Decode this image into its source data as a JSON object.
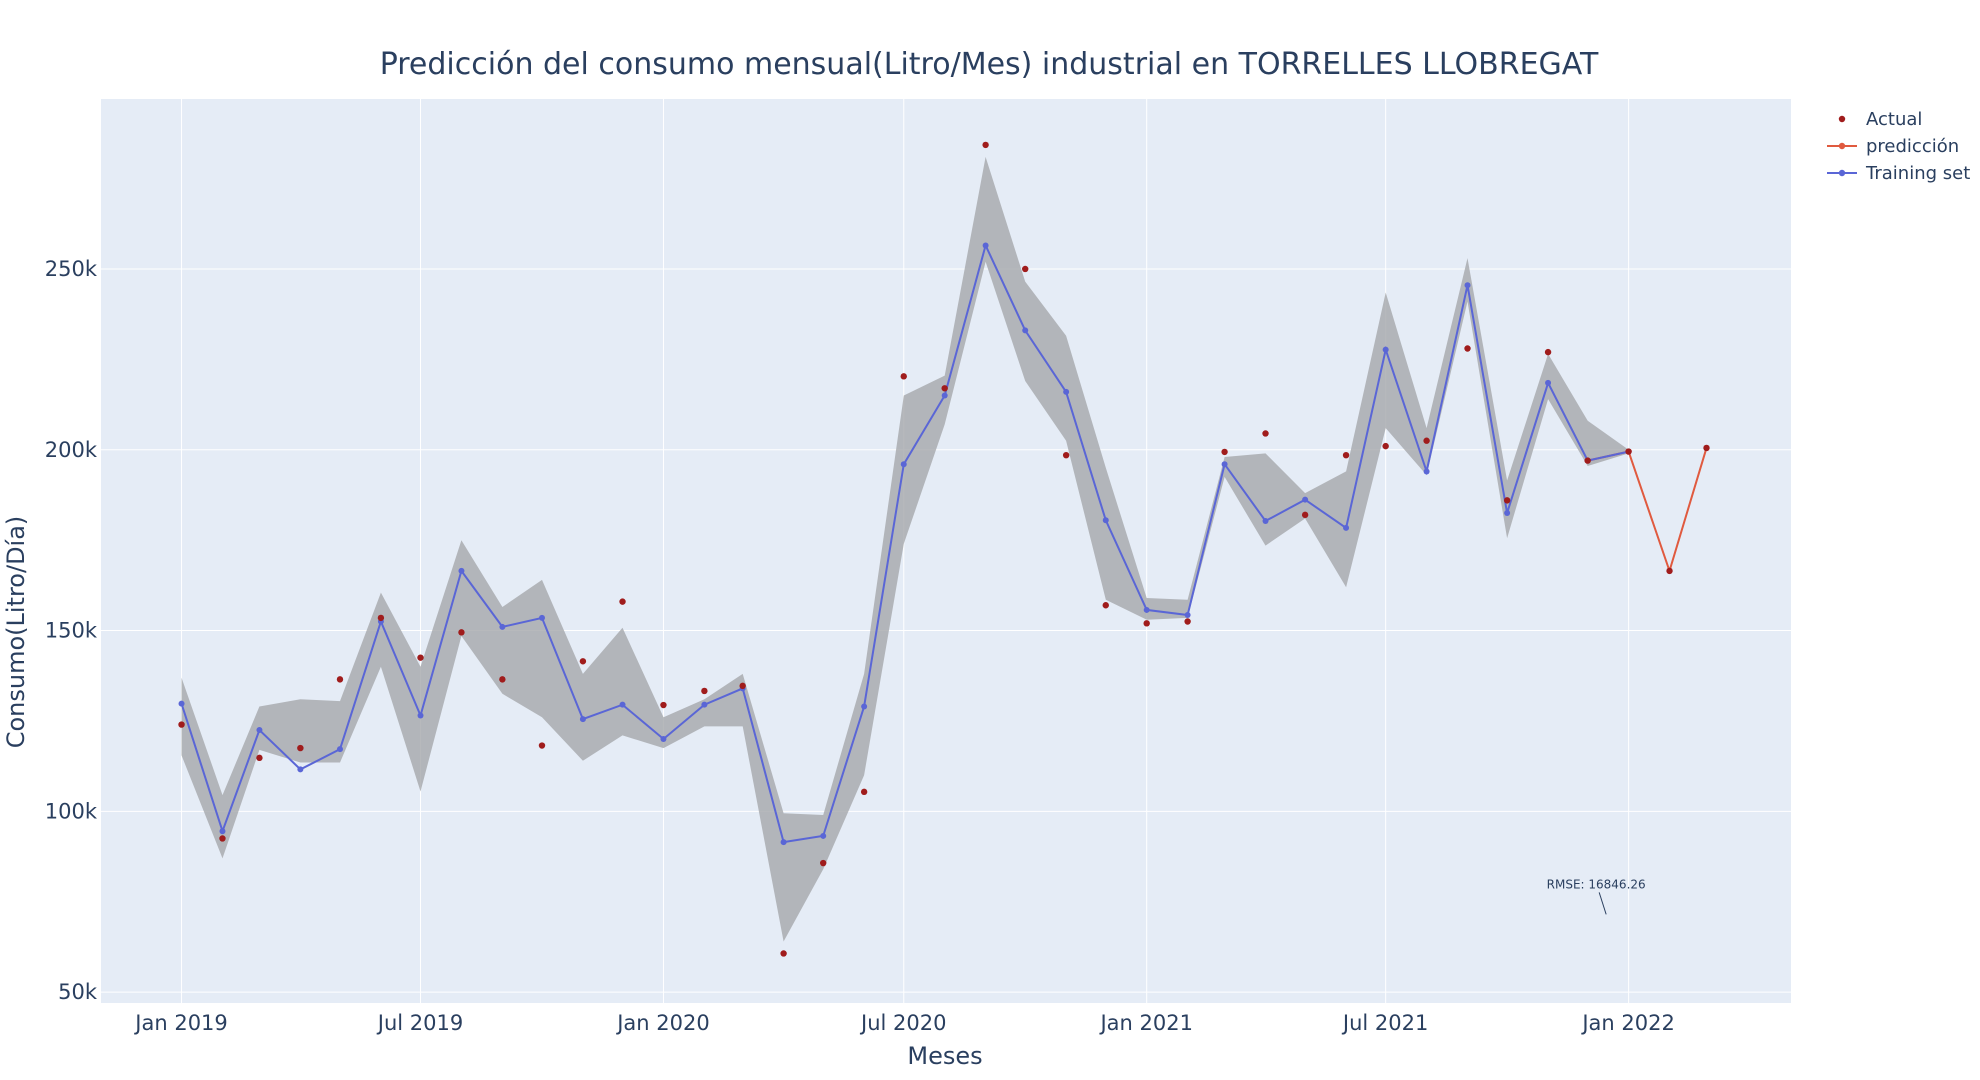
{
  "chart_data": {
    "type": "line",
    "title": "Predicción del consumo mensual(Litro/Mes) industrial en TORRELLES LLOBREGAT",
    "xlabel": "Meses",
    "ylabel": "Consumo(Litro/Día)",
    "x_ticks": [
      {
        "date": "2019-01-01",
        "label": "Jan 2019"
      },
      {
        "date": "2019-07-01",
        "label": "Jul 2019"
      },
      {
        "date": "2020-01-01",
        "label": "Jan 2020"
      },
      {
        "date": "2020-07-01",
        "label": "Jul 2020"
      },
      {
        "date": "2021-01-01",
        "label": "Jan 2021"
      },
      {
        "date": "2021-07-01",
        "label": "Jul 2021"
      },
      {
        "date": "2022-01-01",
        "label": "Jan 2022"
      }
    ],
    "y_ticks": [
      {
        "value": 50000,
        "label": "50k"
      },
      {
        "value": 100000,
        "label": "100k"
      },
      {
        "value": 150000,
        "label": "150k"
      },
      {
        "value": 200000,
        "label": "200k"
      },
      {
        "value": 250000,
        "label": "250k"
      }
    ],
    "xlim": [
      "2018-11-01",
      "2022-05-04"
    ],
    "ylim": [
      47000,
      297000
    ],
    "grid": true,
    "legend_position": "top-right",
    "colors": {
      "plot_bg": "#e5ecf6",
      "grid": "#ffffff",
      "actual": "#a01c1c",
      "prediction": "#e05a3f",
      "training": "#5a66d6",
      "band": "#a5a8ab"
    },
    "series": [
      {
        "name": "Actual",
        "mode": "markers",
        "x": [
          "2019-01-01",
          "2019-02-01",
          "2019-03-01",
          "2019-04-01",
          "2019-05-01",
          "2019-06-01",
          "2019-07-01",
          "2019-08-01",
          "2019-09-01",
          "2019-10-01",
          "2019-11-01",
          "2019-12-01",
          "2020-01-01",
          "2020-02-01",
          "2020-03-01",
          "2020-04-01",
          "2020-05-01",
          "2020-06-01",
          "2020-07-01",
          "2020-08-01",
          "2020-09-01",
          "2020-10-01",
          "2020-11-01",
          "2020-12-01",
          "2021-01-01",
          "2021-02-01",
          "2021-03-01",
          "2021-04-01",
          "2021-05-01",
          "2021-06-01",
          "2021-07-01",
          "2021-08-01",
          "2021-09-01",
          "2021-10-01",
          "2021-11-01",
          "2021-12-01",
          "2022-01-01",
          "2022-02-01",
          "2022-03-01"
        ],
        "y": [
          124000,
          92500,
          114800,
          117500,
          136500,
          153500,
          142500,
          149500,
          136500,
          118200,
          141500,
          158000,
          129400,
          133300,
          134700,
          60700,
          85700,
          105400,
          220300,
          217000,
          284300,
          250000,
          198500,
          157000,
          152000,
          152500,
          199400,
          204500,
          182000,
          198500,
          201000,
          202500,
          228000,
          186000,
          227000,
          197000,
          199500,
          166500,
          200500
        ]
      },
      {
        "name": "predicción",
        "mode": "lines+markers",
        "x": [
          "2021-12-01",
          "2022-01-01",
          "2022-02-01",
          "2022-03-01"
        ],
        "y": [
          197000,
          199500,
          166500,
          200500
        ]
      },
      {
        "name": "Training set",
        "mode": "lines+markers",
        "x": [
          "2019-01-01",
          "2019-02-01",
          "2019-03-01",
          "2019-04-01",
          "2019-05-01",
          "2019-06-01",
          "2019-07-01",
          "2019-08-01",
          "2019-09-01",
          "2019-10-01",
          "2019-11-01",
          "2019-12-01",
          "2020-01-01",
          "2020-02-01",
          "2020-03-01",
          "2020-04-01",
          "2020-05-01",
          "2020-06-01",
          "2020-07-01",
          "2020-08-01",
          "2020-09-01",
          "2020-10-01",
          "2020-11-01",
          "2020-12-01",
          "2021-01-01",
          "2021-02-01",
          "2021-03-01",
          "2021-04-01",
          "2021-05-01",
          "2021-06-01",
          "2021-07-01",
          "2021-08-01",
          "2021-09-01",
          "2021-10-01",
          "2021-11-01",
          "2021-12-01",
          "2022-01-01"
        ],
        "y": [
          129800,
          94500,
          122500,
          111600,
          117200,
          152500,
          126500,
          166500,
          151000,
          153500,
          125500,
          129500,
          120000,
          129500,
          134000,
          91500,
          93200,
          129000,
          196000,
          215000,
          256500,
          233000,
          216000,
          180500,
          155700,
          154300,
          196000,
          180300,
          186200,
          178400,
          227700,
          194000,
          245500,
          182500,
          218500,
          197000,
          199500
        ]
      }
    ],
    "band": {
      "x": [
        "2019-01-01",
        "2019-02-01",
        "2019-03-01",
        "2019-04-01",
        "2019-05-01",
        "2019-06-01",
        "2019-07-01",
        "2019-08-01",
        "2019-09-01",
        "2019-10-01",
        "2019-11-01",
        "2019-12-01",
        "2020-01-01",
        "2020-02-01",
        "2020-03-01",
        "2020-04-01",
        "2020-05-01",
        "2020-06-01",
        "2020-07-01",
        "2020-08-01",
        "2020-09-01",
        "2020-10-01",
        "2020-11-01",
        "2020-12-01",
        "2021-01-01",
        "2021-02-01",
        "2021-03-01",
        "2021-04-01",
        "2021-05-01",
        "2021-06-01",
        "2021-07-01",
        "2021-08-01",
        "2021-09-01",
        "2021-10-01",
        "2021-11-01",
        "2021-12-01",
        "2022-01-01"
      ],
      "upper": [
        137000,
        104500,
        129000,
        131000,
        130500,
        160500,
        140000,
        175000,
        156500,
        164000,
        138000,
        150800,
        126000,
        131000,
        138000,
        99500,
        99000,
        138000,
        215000,
        220500,
        281000,
        246500,
        231500,
        195000,
        159000,
        158500,
        198000,
        199000,
        188000,
        194000,
        243500,
        206000,
        253000,
        191500,
        226500,
        208000,
        200000
      ],
      "lower": [
        115500,
        87000,
        117000,
        113500,
        113500,
        140000,
        105500,
        148500,
        132500,
        126000,
        114000,
        121000,
        117500,
        123500,
        123500,
        64000,
        84000,
        110000,
        174000,
        207000,
        252000,
        219000,
        202500,
        158500,
        153000,
        153500,
        192500,
        173500,
        181000,
        162000,
        206000,
        193000,
        241000,
        175500,
        214000,
        195500,
        199000
      ]
    },
    "annotation": {
      "text": "RMSE: 16846.26",
      "x": "2021-12-15",
      "y": 71500
    }
  }
}
